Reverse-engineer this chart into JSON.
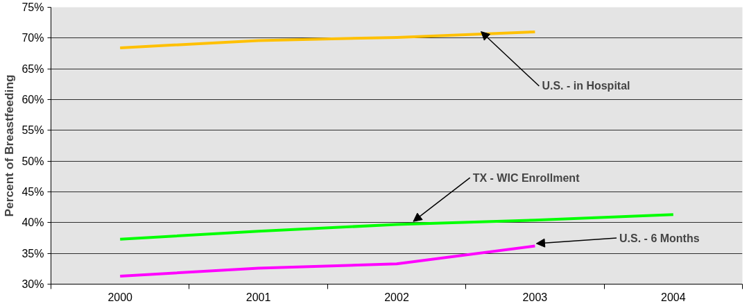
{
  "chart_data": {
    "type": "line",
    "ylabel": "Percent of Breastfeeding",
    "categories": [
      "2000",
      "2001",
      "2002",
      "2003",
      "2004"
    ],
    "ylim": [
      30,
      75
    ],
    "yticks": [
      {
        "value": 30,
        "label": "30%"
      },
      {
        "value": 35,
        "label": "35%"
      },
      {
        "value": 40,
        "label": "40%"
      },
      {
        "value": 45,
        "label": "45%"
      },
      {
        "value": 50,
        "label": "50%"
      },
      {
        "value": 55,
        "label": "55%"
      },
      {
        "value": 60,
        "label": "60%"
      },
      {
        "value": 65,
        "label": "65%"
      },
      {
        "value": 70,
        "label": "70%"
      },
      {
        "value": 75,
        "label": "75%"
      }
    ],
    "grid": "y",
    "marker": "none",
    "line_style": "solid",
    "series": [
      {
        "name": "U.S. - in Hospital",
        "color": "#ffc000",
        "values": [
          68.4,
          69.6,
          70.1,
          71.0,
          null
        ]
      },
      {
        "name": "TX - WIC Enrollment",
        "color": "#00ff00",
        "values": [
          37.3,
          38.6,
          39.7,
          40.4,
          41.3
        ]
      },
      {
        "name": "U.S. - 6 Months",
        "color": "#ff00ff",
        "values": [
          31.3,
          32.6,
          33.3,
          36.2,
          null
        ]
      }
    ]
  }
}
